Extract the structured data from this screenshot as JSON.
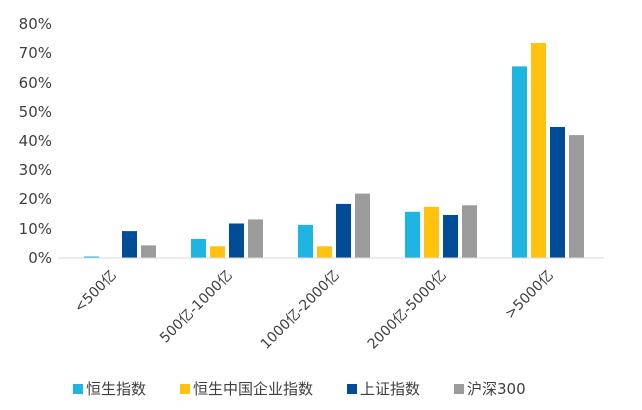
{
  "chart_data": {
    "type": "bar",
    "categories": [
      "<500亿",
      "500亿-1000亿",
      "1000亿-2000亿",
      "2000亿-5000亿",
      ">5000亿"
    ],
    "series": [
      {
        "name": "恒生指数",
        "color": "#1FB5E3",
        "values": [
          0.5,
          6.5,
          11.3,
          15.8,
          65.5
        ]
      },
      {
        "name": "恒生中国企业指数",
        "color": "#FFC20E",
        "values": [
          0,
          4,
          4,
          17.5,
          73.5
        ]
      },
      {
        "name": "上证指数",
        "color": "#004C97",
        "values": [
          9.2,
          11.8,
          18.5,
          14.7,
          44.8
        ]
      },
      {
        "name": "沪深300",
        "color": "#9B9B9B",
        "values": [
          4.3,
          13.2,
          22,
          18,
          42
        ]
      }
    ],
    "yticks": [
      "0%",
      "10%",
      "20%",
      "30%",
      "40%",
      "50%",
      "60%",
      "70%",
      "80%"
    ],
    "ylim": [
      0,
      80
    ],
    "grid": false,
    "legend": "bottom"
  }
}
